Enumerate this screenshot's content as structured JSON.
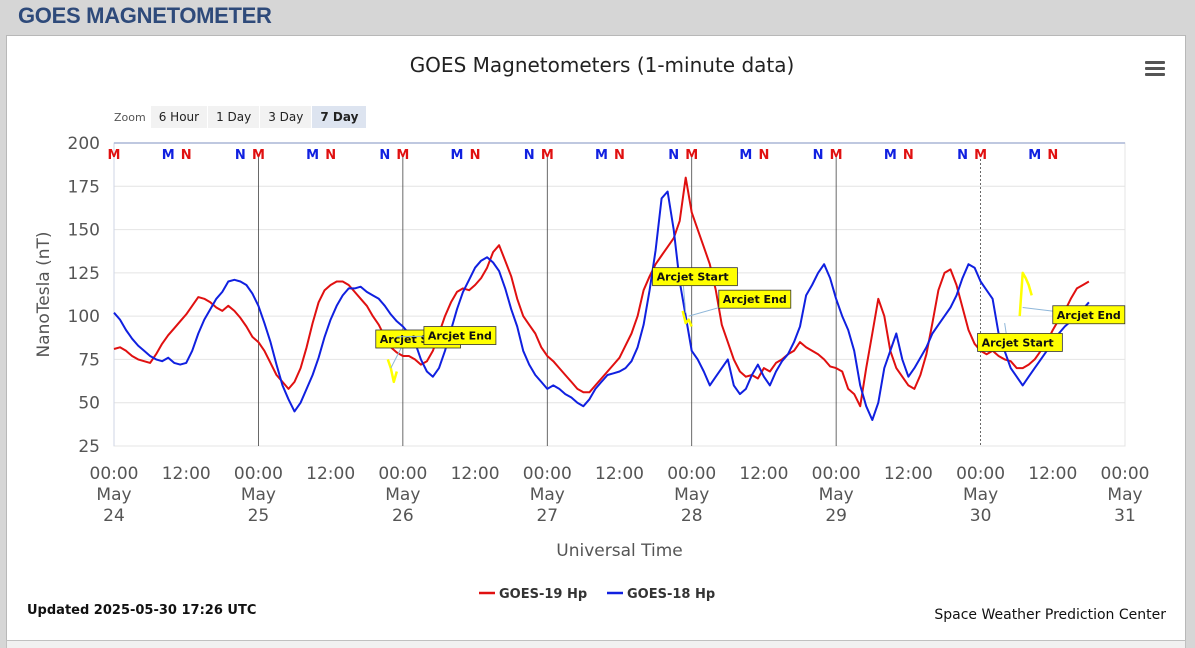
{
  "page": {
    "title": "GOES MAGNETOMETER"
  },
  "chart": {
    "title": "GOES Magnetometers (1-minute data)",
    "zoom_label": "Zoom",
    "zoom_buttons": [
      "6 Hour",
      "1 Day",
      "3 Day",
      "7 Day"
    ],
    "zoom_active": "7 Day"
  },
  "footer": {
    "updated": "Updated 2025-05-30 17:26 UTC",
    "credit": "Space Weather Prediction Center"
  },
  "colors": {
    "goes19": "#e01010",
    "goes18": "#1020e0",
    "arcjet": "#ffff00",
    "title_blue": "#2e4a7a"
  },
  "chart_data": {
    "type": "line",
    "title": "GOES Magnetometers (1-minute data)",
    "xlabel": "Universal Time",
    "ylabel": "NanoTesla (nT)",
    "ylim": [
      25,
      200
    ],
    "yticks": [
      25,
      50,
      75,
      100,
      125,
      150,
      175,
      200
    ],
    "xlim": [
      0,
      168
    ],
    "x_unit": "hours since 2025-05-24 00:00 UTC",
    "xticks": [
      {
        "h": 0,
        "time": "00:00",
        "month": "May",
        "day": "24"
      },
      {
        "h": 12,
        "time": "12:00"
      },
      {
        "h": 24,
        "time": "00:00",
        "month": "May",
        "day": "25"
      },
      {
        "h": 36,
        "time": "12:00"
      },
      {
        "h": 48,
        "time": "00:00",
        "month": "May",
        "day": "26"
      },
      {
        "h": 60,
        "time": "12:00"
      },
      {
        "h": 72,
        "time": "00:00",
        "month": "May",
        "day": "27"
      },
      {
        "h": 84,
        "time": "12:00"
      },
      {
        "h": 96,
        "time": "00:00",
        "month": "May",
        "day": "28"
      },
      {
        "h": 108,
        "time": "12:00"
      },
      {
        "h": 120,
        "time": "00:00",
        "month": "May",
        "day": "29"
      },
      {
        "h": 132,
        "time": "12:00"
      },
      {
        "h": 144,
        "time": "00:00",
        "month": "May",
        "day": "30"
      },
      {
        "h": 156,
        "time": "12:00"
      },
      {
        "h": 168,
        "time": "00:00",
        "month": "May",
        "day": "31"
      }
    ],
    "grid": true,
    "legend_position": "bottom-center",
    "series": [
      {
        "name": "GOES-19 Hp",
        "color": "#e01010",
        "x": [
          0,
          1,
          2,
          3,
          4,
          5,
          6,
          7,
          8,
          9,
          10,
          11,
          12,
          13,
          14,
          15,
          16,
          17,
          18,
          19,
          20,
          21,
          22,
          23,
          24,
          25,
          26,
          27,
          28,
          29,
          30,
          31,
          32,
          33,
          34,
          35,
          36,
          37,
          38,
          39,
          40,
          41,
          42,
          43,
          44,
          45,
          46,
          47,
          48,
          49,
          50,
          51,
          52,
          53,
          54,
          55,
          56,
          57,
          58,
          59,
          60,
          61,
          62,
          63,
          64,
          65,
          66,
          67,
          68,
          69,
          70,
          71,
          72,
          73,
          74,
          75,
          76,
          77,
          78,
          79,
          80,
          81,
          82,
          83,
          84,
          85,
          86,
          87,
          88,
          89,
          90,
          91,
          92,
          93,
          94,
          95,
          96,
          97,
          98,
          99,
          100,
          101,
          102,
          103,
          104,
          105,
          106,
          107,
          108,
          109,
          110,
          111,
          112,
          113,
          114,
          115,
          116,
          117,
          118,
          119,
          120,
          121,
          122,
          123,
          124,
          125,
          126,
          127,
          128,
          129,
          130,
          131,
          132,
          133,
          134,
          135,
          136,
          137,
          138,
          139,
          140,
          141,
          142,
          143,
          144,
          145,
          146,
          147,
          148,
          149,
          150,
          151,
          152,
          153,
          154,
          155,
          156,
          157,
          158,
          159,
          160,
          161,
          162
        ],
        "y": [
          81,
          82,
          80,
          77,
          75,
          74,
          73,
          78,
          84,
          89,
          93,
          97,
          101,
          106,
          111,
          110,
          108,
          105,
          103,
          106,
          103,
          99,
          94,
          88,
          85,
          80,
          73,
          66,
          62,
          58,
          62,
          70,
          82,
          96,
          108,
          115,
          118,
          120,
          120,
          118,
          114,
          110,
          106,
          100,
          95,
          88,
          82,
          79,
          77,
          77,
          75,
          72,
          74,
          80,
          90,
          100,
          108,
          114,
          116,
          115,
          118,
          122,
          128,
          137,
          141,
          132,
          123,
          110,
          100,
          95,
          90,
          82,
          77,
          74,
          70,
          66,
          62,
          58,
          56,
          56,
          60,
          64,
          68,
          72,
          76,
          83,
          90,
          100,
          115,
          123,
          130,
          135,
          140,
          145,
          155,
          180,
          160,
          150,
          140,
          130,
          115,
          95,
          85,
          75,
          68,
          65,
          66,
          64,
          70,
          68,
          73,
          75,
          78,
          80,
          85,
          82,
          80,
          78,
          75,
          71,
          70,
          68,
          58,
          55,
          48,
          70,
          90,
          110,
          100,
          80,
          70,
          65,
          60,
          58,
          66,
          78,
          96,
          115,
          125,
          127,
          118,
          105,
          92,
          84,
          80,
          78,
          80,
          77,
          75,
          74,
          70,
          70,
          72,
          75,
          80,
          85,
          92,
          98,
          103,
          110,
          116,
          118,
          120
        ]
      },
      {
        "name": "GOES-18 Hp",
        "color": "#1020e0",
        "x": [
          0,
          1,
          2,
          3,
          4,
          5,
          6,
          7,
          8,
          9,
          10,
          11,
          12,
          13,
          14,
          15,
          16,
          17,
          18,
          19,
          20,
          21,
          22,
          23,
          24,
          25,
          26,
          27,
          28,
          29,
          30,
          31,
          32,
          33,
          34,
          35,
          36,
          37,
          38,
          39,
          40,
          41,
          42,
          43,
          44,
          45,
          46,
          47,
          48,
          49,
          50,
          51,
          52,
          53,
          54,
          55,
          56,
          57,
          58,
          59,
          60,
          61,
          62,
          63,
          64,
          65,
          66,
          67,
          68,
          69,
          70,
          71,
          72,
          73,
          74,
          75,
          76,
          77,
          78,
          79,
          80,
          81,
          82,
          83,
          84,
          85,
          86,
          87,
          88,
          89,
          90,
          91,
          92,
          93,
          94,
          95,
          96,
          97,
          98,
          99,
          100,
          101,
          102,
          103,
          104,
          105,
          106,
          107,
          108,
          109,
          110,
          111,
          112,
          113,
          114,
          115,
          116,
          117,
          118,
          119,
          120,
          121,
          122,
          123,
          124,
          125,
          126,
          127,
          128,
          129,
          130,
          131,
          132,
          133,
          134,
          135,
          136,
          137,
          138,
          139,
          140,
          141,
          142,
          143,
          144,
          145,
          146,
          147,
          148,
          149,
          150,
          151,
          152,
          153,
          154,
          155,
          156,
          157,
          158,
          159,
          160,
          161,
          162
        ],
        "y": [
          102,
          98,
          92,
          87,
          83,
          80,
          77,
          75,
          74,
          76,
          73,
          72,
          73,
          80,
          90,
          98,
          104,
          110,
          114,
          120,
          121,
          120,
          118,
          113,
          106,
          96,
          85,
          72,
          60,
          52,
          45,
          50,
          58,
          66,
          76,
          88,
          98,
          106,
          112,
          116,
          116,
          117,
          114,
          112,
          110,
          106,
          101,
          97,
          94,
          90,
          85,
          75,
          68,
          65,
          70,
          80,
          92,
          104,
          114,
          121,
          128,
          132,
          134,
          131,
          126,
          116,
          104,
          94,
          80,
          72,
          66,
          62,
          58,
          60,
          58,
          55,
          53,
          50,
          48,
          52,
          58,
          62,
          66,
          67,
          68,
          70,
          74,
          82,
          95,
          115,
          138,
          168,
          172,
          150,
          120,
          100,
          80,
          75,
          68,
          60,
          65,
          70,
          75,
          60,
          55,
          58,
          66,
          72,
          65,
          60,
          68,
          74,
          78,
          85,
          94,
          112,
          118,
          125,
          130,
          122,
          110,
          100,
          92,
          80,
          60,
          48,
          40,
          50,
          70,
          80,
          90,
          75,
          65,
          70,
          76,
          82,
          90,
          95,
          100,
          105,
          112,
          122,
          130,
          128,
          120,
          115,
          110,
          90,
          80,
          70,
          65,
          60,
          65,
          70,
          75,
          80,
          85,
          90,
          94,
          97,
          100,
          104,
          108
        ]
      },
      {
        "name": "",
        "color": "#ffff00",
        "x": [
          45.5,
          46.0,
          46.5,
          47.0
        ],
        "y": [
          75,
          70,
          62,
          68
        ]
      },
      {
        "name": "",
        "color": "#ffff00",
        "x": [
          94.5,
          95.0,
          95.5,
          96.0
        ],
        "y": [
          103,
          96,
          98,
          94
        ]
      },
      {
        "name": "",
        "color": "#ffff00",
        "x": [
          150.5,
          151.0,
          151.5,
          152.0,
          152.5
        ],
        "y": [
          100,
          125,
          122,
          118,
          112
        ]
      }
    ],
    "vertical_lines": [
      {
        "x": 24,
        "style": "solid"
      },
      {
        "x": 48,
        "style": "solid"
      },
      {
        "x": 72,
        "style": "solid"
      },
      {
        "x": 96,
        "style": "solid"
      },
      {
        "x": 120,
        "style": "solid"
      },
      {
        "x": 144,
        "style": "dotted"
      }
    ],
    "mn_markers": [
      {
        "x": 0,
        "label": "M",
        "color": "#e01010"
      },
      {
        "x": 9,
        "label": "M",
        "color": "#1020e0"
      },
      {
        "x": 12,
        "label": "N",
        "color": "#e01010"
      },
      {
        "x": 21,
        "label": "N",
        "color": "#1020e0"
      },
      {
        "x": 24,
        "label": "M",
        "color": "#e01010"
      },
      {
        "x": 33,
        "label": "M",
        "color": "#1020e0"
      },
      {
        "x": 36,
        "label": "N",
        "color": "#e01010"
      },
      {
        "x": 45,
        "label": "N",
        "color": "#1020e0"
      },
      {
        "x": 48,
        "label": "M",
        "color": "#e01010"
      },
      {
        "x": 57,
        "label": "M",
        "color": "#1020e0"
      },
      {
        "x": 60,
        "label": "N",
        "color": "#e01010"
      },
      {
        "x": 69,
        "label": "N",
        "color": "#1020e0"
      },
      {
        "x": 72,
        "label": "M",
        "color": "#e01010"
      },
      {
        "x": 81,
        "label": "M",
        "color": "#1020e0"
      },
      {
        "x": 84,
        "label": "N",
        "color": "#e01010"
      },
      {
        "x": 93,
        "label": "N",
        "color": "#1020e0"
      },
      {
        "x": 96,
        "label": "M",
        "color": "#e01010"
      },
      {
        "x": 105,
        "label": "M",
        "color": "#1020e0"
      },
      {
        "x": 108,
        "label": "N",
        "color": "#e01010"
      },
      {
        "x": 117,
        "label": "N",
        "color": "#1020e0"
      },
      {
        "x": 120,
        "label": "M",
        "color": "#e01010"
      },
      {
        "x": 129,
        "label": "M",
        "color": "#1020e0"
      },
      {
        "x": 132,
        "label": "N",
        "color": "#e01010"
      },
      {
        "x": 141,
        "label": "N",
        "color": "#1020e0"
      },
      {
        "x": 144,
        "label": "M",
        "color": "#e01010"
      },
      {
        "x": 153,
        "label": "M",
        "color": "#1020e0"
      },
      {
        "x": 156,
        "label": "N",
        "color": "#e01010"
      }
    ],
    "annotations": [
      {
        "text": "Arcjet Start",
        "x": 46.0,
        "y": 70,
        "box_x": 43.5,
        "box_y": 92
      },
      {
        "text": "Arcjet End",
        "x": 47.0,
        "y": 88,
        "box_x": 51.5,
        "box_y": 94
      },
      {
        "text": "Arcjet Start",
        "x": 95.0,
        "y": 102,
        "box_x": 89.5,
        "box_y": 128
      },
      {
        "text": "Arcjet End",
        "x": 95.5,
        "y": 100,
        "box_x": 100.5,
        "box_y": 115
      },
      {
        "text": "Arcjet Start",
        "x": 148.0,
        "y": 96,
        "box_x": 143.5,
        "box_y": 90
      },
      {
        "text": "Arcjet End",
        "x": 151.0,
        "y": 105,
        "box_x": 156.0,
        "box_y": 106
      }
    ]
  }
}
